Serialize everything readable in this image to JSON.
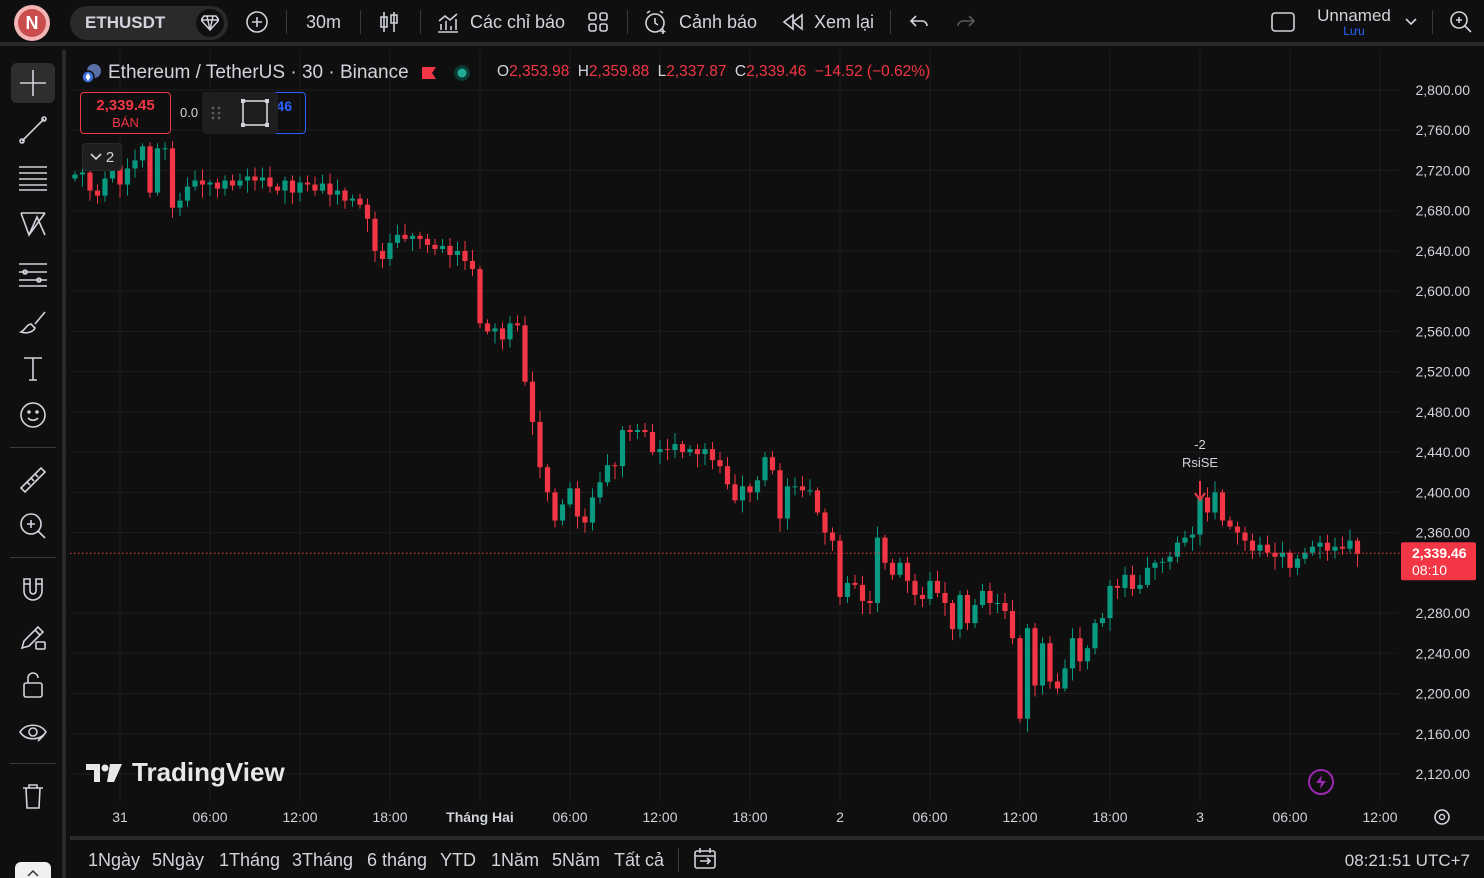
{
  "toolbar": {
    "avatar_letter": "N",
    "symbol": "ETHUSDT",
    "interval": "30m",
    "indicators_label": "Các chỉ báo",
    "alerts_label": "Cảnh báo",
    "replay_label": "Xem lại",
    "layout_name": "Unnamed",
    "save_label": "Lưu"
  },
  "legend": {
    "title": "Ethereum / TetherUS · 30 · Binance",
    "open_key": "O",
    "open": "2,353.98",
    "high_key": "H",
    "high": "2,359.88",
    "low_key": "L",
    "low": "2,337.87",
    "close_key": "C",
    "close": "2,339.46",
    "change": "−14.52 (−0.62%)"
  },
  "trade": {
    "sell_price": "2,339.45",
    "sell_label": "BÁN",
    "spread": "0.0",
    "buy_price_fragment": "46"
  },
  "collapse": {
    "count": "2"
  },
  "brand": "TradingView",
  "annotation": {
    "line1": "-2",
    "line2": "RsiSE"
  },
  "price_label": {
    "price": "2,339.46",
    "countdown": "08:10"
  },
  "bottom": {
    "ranges": [
      "1Ngày",
      "5Ngày",
      "1Tháng",
      "3Tháng",
      "6 tháng",
      "YTD",
      "1Năm",
      "5Năm",
      "Tất cả"
    ],
    "clock": "08:21:51 UTC+7"
  },
  "colors": {
    "up": "#089981",
    "down": "#f23645",
    "grid": "#1c1c1c",
    "price_line": "#f23645"
  },
  "chart_data": {
    "type": "candlestick",
    "ylim": [
      2100,
      2820
    ],
    "y_ticks": [
      2800,
      2760,
      2720,
      2680,
      2640,
      2600,
      2560,
      2520,
      2480,
      2440,
      2400,
      2360,
      2280,
      2240,
      2200,
      2160,
      2120
    ],
    "y_tick_labels": [
      "2,800.00",
      "2,760.00",
      "2,720.00",
      "2,680.00",
      "2,640.00",
      "2,600.00",
      "2,560.00",
      "2,520.00",
      "2,480.00",
      "2,440.00",
      "2,400.00",
      "2,360.00",
      "2,280.00",
      "2,240.00",
      "2,200.00",
      "2,160.00",
      "2,120.00"
    ],
    "x_ticks": [
      {
        "label": "31",
        "bar": 6
      },
      {
        "label": "06:00",
        "bar": 18
      },
      {
        "label": "12:00",
        "bar": 30
      },
      {
        "label": "18:00",
        "bar": 42
      },
      {
        "label": "Tháng Hai",
        "bar": 54,
        "bold": true
      },
      {
        "label": "06:00",
        "bar": 66
      },
      {
        "label": "12:00",
        "bar": 78
      },
      {
        "label": "18:00",
        "bar": 90
      },
      {
        "label": "2",
        "bar": 102
      },
      {
        "label": "06:00",
        "bar": 114
      },
      {
        "label": "12:00",
        "bar": 126
      },
      {
        "label": "18:00",
        "bar": 138
      },
      {
        "label": "3",
        "bar": 150
      },
      {
        "label": "06:00",
        "bar": 162
      },
      {
        "label": "12:00",
        "bar": 174
      }
    ],
    "last_price": 2339.46,
    "marker_bar": 150,
    "closes": [
      2716,
      2718,
      2700,
      2695,
      2712,
      2725,
      2706,
      2722,
      2730,
      2744,
      2698,
      2742,
      2742,
      2683,
      2690,
      2704,
      2710,
      2706,
      2708,
      2702,
      2710,
      2705,
      2710,
      2714,
      2710,
      2713,
      2704,
      2700,
      2710,
      2698,
      2708,
      2706,
      2700,
      2707,
      2696,
      2700,
      2690,
      2692,
      2686,
      2672,
      2640,
      2632,
      2648,
      2656,
      2652,
      2655,
      2652,
      2646,
      2642,
      2645,
      2636,
      2640,
      2630,
      2622,
      2568,
      2560,
      2563,
      2552,
      2568,
      2566,
      2510,
      2470,
      2425,
      2400,
      2372,
      2388,
      2404,
      2376,
      2370,
      2395,
      2410,
      2427,
      2426,
      2462,
      2460,
      2462,
      2460,
      2440,
      2443,
      2442,
      2448,
      2440,
      2443,
      2438,
      2443,
      2432,
      2426,
      2408,
      2392,
      2406,
      2400,
      2412,
      2435,
      2422,
      2374,
      2406,
      2406,
      2402,
      2402,
      2380,
      2360,
      2352,
      2296,
      2310,
      2308,
      2292,
      2290,
      2355,
      2330,
      2318,
      2330,
      2312,
      2298,
      2294,
      2312,
      2300,
      2290,
      2264,
      2298,
      2270,
      2288,
      2302,
      2290,
      2290,
      2282,
      2255,
      2175,
      2265,
      2208,
      2250,
      2212,
      2205,
      2225,
      2255,
      2232,
      2245,
      2270,
      2275,
      2307,
      2305,
      2318,
      2304,
      2308,
      2325,
      2330,
      2331,
      2336,
      2350,
      2355,
      2358,
      2395,
      2380,
      2400,
      2372,
      2366,
      2360,
      2352,
      2342,
      2348,
      2340,
      2336,
      2340,
      2325,
      2334,
      2340,
      2346,
      2350,
      2342,
      2346,
      2344,
      2352,
      2339
    ]
  }
}
